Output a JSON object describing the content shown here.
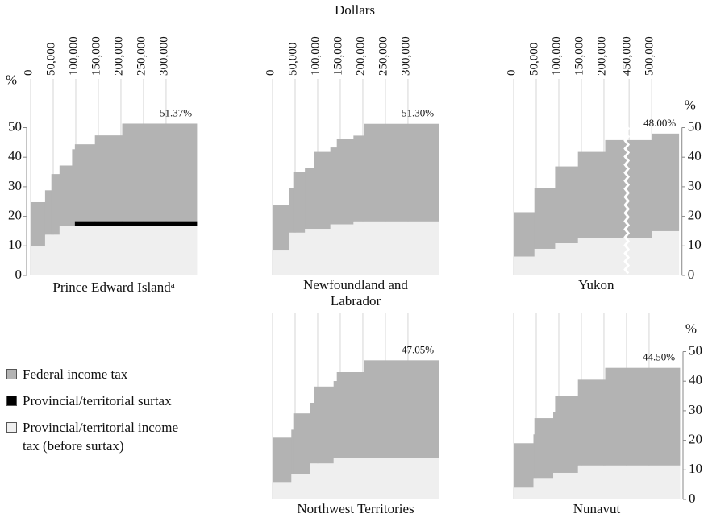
{
  "axis_title": "Dollars",
  "chart_data": [
    {
      "type": "step-area",
      "title": "Prince Edward Island",
      "title_note": "a",
      "annotation": "51.37%",
      "x": [
        0,
        31984,
        45916,
        63969,
        91831,
        98000,
        142353,
        202800
      ],
      "series": [
        {
          "name": "Provincial/territorial income tax (before surtax)",
          "color": "#efefef",
          "values": [
            9.8,
            13.8,
            13.8,
            16.7,
            16.7,
            16.7,
            16.7,
            16.7
          ]
        },
        {
          "name": "Provincial/territorial surtax",
          "color": "#000000",
          "values": [
            0,
            0,
            0,
            0,
            0,
            1.67,
            1.67,
            1.67
          ]
        },
        {
          "name": "Federal income tax",
          "color": "#b3b3b3",
          "values": [
            15,
            15,
            20.5,
            20.5,
            26,
            26,
            29,
            33
          ]
        }
      ],
      "xlim": [
        0,
        368000
      ],
      "xticks": [
        0,
        {
          "value": 50000,
          "label": "50,000"
        },
        {
          "value": 100000,
          "label": "100,000"
        },
        {
          "value": 150000,
          "label": "150,000"
        },
        {
          "value": 200000,
          "label": "200,000"
        },
        {
          "value": 250000,
          "label": "250,000"
        },
        {
          "value": 300000,
          "label": "300,000"
        }
      ],
      "show_xtick_labels": true,
      "ylim": [
        0,
        50
      ],
      "yticks": [
        0,
        10,
        20,
        30,
        40,
        50
      ],
      "y_axis": "left",
      "y_unit": "%"
    },
    {
      "type": "step-area",
      "title": "Newfoundland and Labrador",
      "annotation": "51.30%",
      "x": [
        0,
        35851,
        45916,
        71701,
        91831,
        128010,
        142353,
        179214,
        202800
      ],
      "series": [
        {
          "color": "#efefef",
          "values": [
            8.7,
            14.5,
            14.5,
            15.8,
            15.8,
            17.3,
            17.3,
            18.3,
            18.3
          ]
        },
        {
          "color": "#b3b3b3",
          "values": [
            15,
            15,
            20.5,
            20.5,
            26,
            26,
            29,
            29,
            33
          ]
        }
      ],
      "xlim": [
        0,
        368000
      ],
      "xticks": [
        0,
        {
          "value": 50000,
          "label": "50,000"
        },
        {
          "value": 100000,
          "label": "100,000"
        },
        {
          "value": 150000,
          "label": "150,000"
        },
        {
          "value": 200000,
          "label": "200,000"
        },
        {
          "value": 250000,
          "label": "250,000"
        },
        {
          "value": 300000,
          "label": "300,000"
        }
      ],
      "show_xtick_labels": true,
      "ylim": [
        0,
        50
      ]
    },
    {
      "type": "step-area",
      "title": "Yukon",
      "annotation": "48.00%",
      "x": [
        0,
        45916,
        91831,
        142353,
        202800,
        500000
      ],
      "series": [
        {
          "color": "#efefef",
          "values": [
            6.4,
            9,
            10.9,
            12.8,
            12.8,
            15
          ]
        },
        {
          "color": "#b3b3b3",
          "values": [
            15,
            20.5,
            26,
            29,
            33,
            33
          ]
        }
      ],
      "xlim": [
        0,
        560000
      ],
      "xbreak": [
        245000,
        450000
      ],
      "xticks": [
        0,
        {
          "value": 50000,
          "label": "50,000"
        },
        {
          "value": 100000,
          "label": "100,000"
        },
        {
          "value": 150000,
          "label": "150,000"
        },
        {
          "value": 200000,
          "label": "200,000"
        },
        {
          "value": 450000,
          "label": "450,000"
        },
        {
          "value": 500000,
          "label": "500,000"
        }
      ],
      "show_xtick_labels": true,
      "ylim": [
        0,
        50
      ],
      "yticks": [
        0,
        10,
        20,
        30,
        40,
        50
      ],
      "y_axis": "right",
      "y_unit": "%"
    },
    {
      "type": "step-area",
      "title": "Northwest Territories",
      "annotation": "47.05%",
      "x": [
        0,
        41585,
        45916,
        83172,
        91831,
        135219,
        142353,
        202800
      ],
      "series": [
        {
          "color": "#efefef",
          "values": [
            5.9,
            8.6,
            8.6,
            12.2,
            12.2,
            14.05,
            14.05,
            14.05
          ]
        },
        {
          "color": "#b3b3b3",
          "values": [
            15,
            15,
            20.5,
            20.5,
            26,
            26,
            29,
            33
          ]
        }
      ],
      "xlim": [
        0,
        368000
      ],
      "xticks": [
        0,
        50000,
        100000,
        150000,
        200000,
        250000,
        300000
      ],
      "show_xtick_labels": false,
      "ylim": [
        0,
        50
      ]
    },
    {
      "type": "step-area",
      "title": "Nunavut",
      "annotation": "44.50%",
      "x": [
        0,
        43780,
        45916,
        87560,
        91831,
        142353,
        202800
      ],
      "series": [
        {
          "color": "#efefef",
          "values": [
            4,
            7,
            7,
            9,
            9,
            11.5,
            11.5
          ]
        },
        {
          "color": "#b3b3b3",
          "values": [
            15,
            15,
            20.5,
            20.5,
            26,
            29,
            33
          ]
        }
      ],
      "xlim": [
        0,
        368000
      ],
      "xticks": [
        0,
        50000,
        100000,
        150000,
        200000,
        250000,
        300000
      ],
      "show_xtick_labels": false,
      "ylim": [
        0,
        50
      ],
      "yticks": [
        0,
        10,
        20,
        30,
        40,
        50
      ],
      "y_axis": "right",
      "y_unit": "%"
    }
  ]
}
